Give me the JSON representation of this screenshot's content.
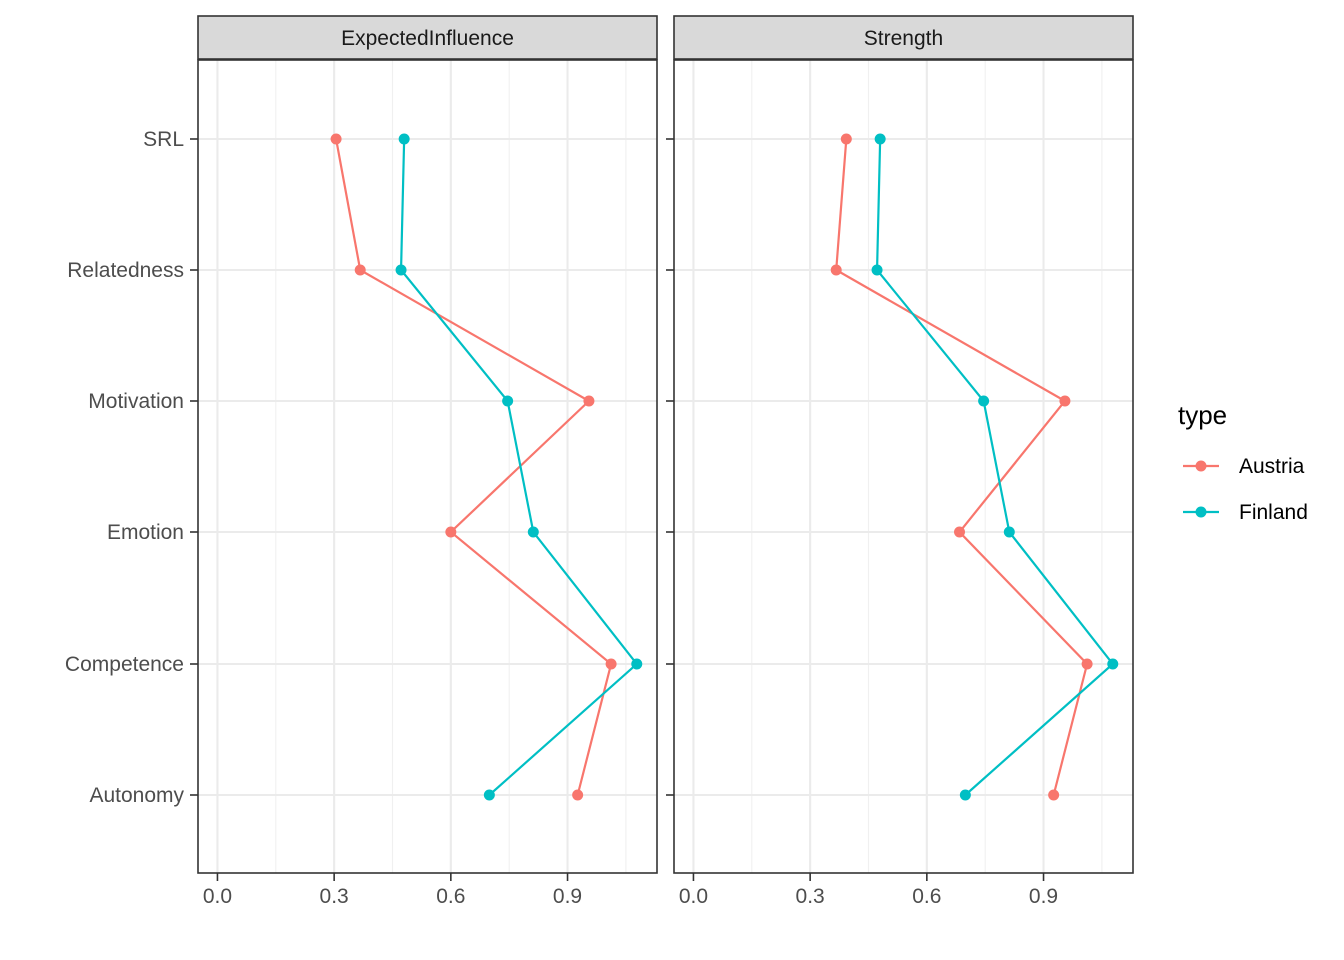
{
  "colors": {
    "Austria": "#F8766D",
    "Finland": "#00BFC4"
  },
  "chart_data": {
    "type": "line",
    "facets": [
      "ExpectedInfluence",
      "Strength"
    ],
    "categories": [
      "SRL",
      "Relatedness",
      "Motivation",
      "Emotion",
      "Competence",
      "Autonomy"
    ],
    "x_ticks": [
      0.0,
      0.3,
      0.6,
      0.9
    ],
    "x_tick_labels": [
      "0.0",
      "0.3",
      "0.6",
      "0.9"
    ],
    "xlim": [
      -0.05,
      1.13
    ],
    "grid": true,
    "legend": {
      "title": "type",
      "placement": "right",
      "entries": [
        "Austria",
        "Finland"
      ]
    },
    "series": [
      {
        "name": "Austria",
        "ExpectedInfluence": [
          0.305,
          0.367,
          0.955,
          0.6,
          1.012,
          0.926
        ],
        "Strength": [
          0.393,
          0.367,
          0.955,
          0.684,
          1.012,
          0.926
        ]
      },
      {
        "name": "Finland",
        "ExpectedInfluence": [
          0.48,
          0.472,
          0.746,
          0.812,
          1.078,
          0.699
        ],
        "Strength": [
          0.48,
          0.472,
          0.746,
          0.812,
          1.078,
          0.699
        ]
      }
    ]
  }
}
